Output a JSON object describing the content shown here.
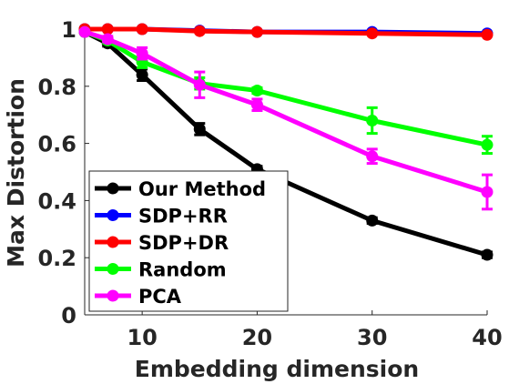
{
  "chart_data": {
    "type": "line",
    "xlabel": "Embedding dimension",
    "ylabel": "Max Distortion",
    "xlim": [
      5,
      40
    ],
    "ylim": [
      0,
      1
    ],
    "x_ticks": [
      10,
      20,
      30,
      40
    ],
    "y_ticks": [
      0,
      0.2,
      0.4,
      0.6,
      0.8,
      1
    ],
    "y_tick_labels": [
      "0",
      "0.2",
      "0.4",
      "0.6",
      "0.8",
      "1"
    ],
    "grid": false,
    "legend_position": "bottom-left",
    "x": [
      5,
      7,
      10,
      15,
      20,
      30,
      40
    ],
    "series": [
      {
        "name": "Our Method",
        "color": "#000000",
        "values": [
          0.99,
          0.95,
          0.84,
          0.65,
          0.51,
          0.33,
          0.21
        ],
        "errors": [
          0,
          0.01,
          0.02,
          0.02,
          0.01,
          0.01,
          0.01
        ]
      },
      {
        "name": "SDP+RR",
        "color": "#0000ff",
        "values": [
          1.0,
          1.0,
          1.0,
          0.995,
          0.99,
          0.99,
          0.985
        ],
        "errors": [
          0,
          0,
          0,
          0,
          0,
          0,
          0
        ]
      },
      {
        "name": "SDP+DR",
        "color": "#ff0000",
        "values": [
          1.0,
          1.0,
          1.0,
          0.993,
          0.99,
          0.985,
          0.98
        ],
        "errors": [
          0,
          0,
          0,
          0,
          0,
          0,
          0
        ]
      },
      {
        "name": "Random",
        "color": "#00ff00",
        "values": [
          0.99,
          0.96,
          0.885,
          0.81,
          0.785,
          0.68,
          0.595
        ],
        "errors": [
          0,
          0.01,
          0.02,
          0.02,
          0.01,
          0.045,
          0.03
        ]
      },
      {
        "name": "PCA",
        "color": "#ff00ff",
        "values": [
          0.99,
          0.965,
          0.915,
          0.805,
          0.735,
          0.555,
          0.43
        ],
        "errors": [
          0,
          0.01,
          0.02,
          0.045,
          0.02,
          0.025,
          0.06
        ]
      }
    ]
  }
}
